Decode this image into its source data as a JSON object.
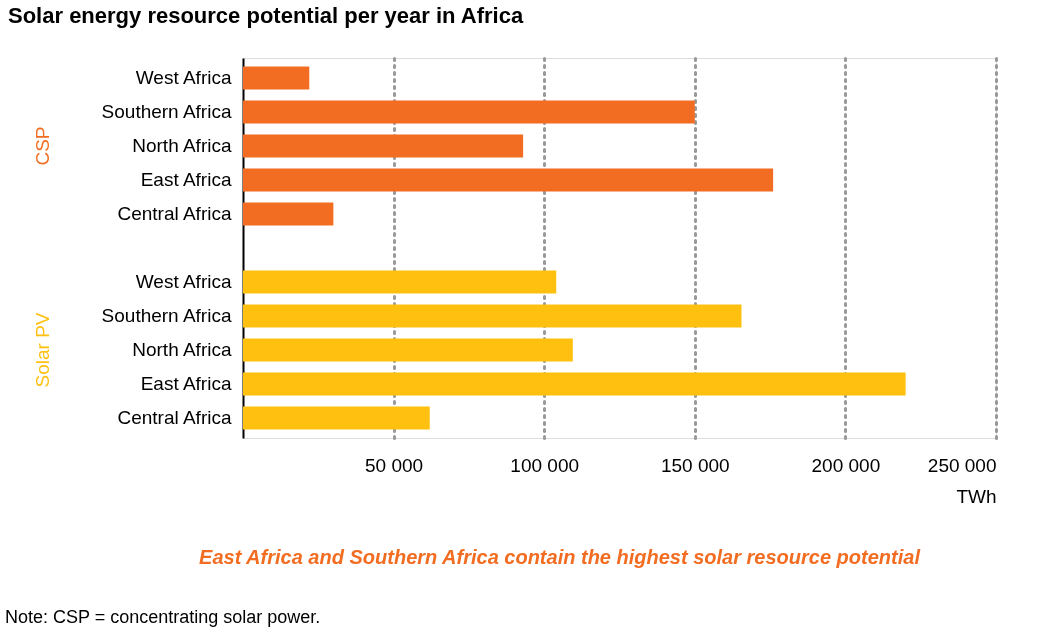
{
  "chart_data": {
    "type": "bar",
    "orientation": "horizontal",
    "title": "Solar energy resource potential per year in Africa",
    "categories": [
      "West Africa",
      "Southern Africa",
      "North Africa",
      "East Africa",
      "Central Africa",
      "West Africa",
      "Southern Africa",
      "North Africa",
      "East Africa",
      "Central Africa"
    ],
    "series": [
      {
        "name": "CSP",
        "color": "#f26d21",
        "values": [
          22000,
          150000,
          93000,
          176000,
          30000,
          null,
          null,
          null,
          null,
          null
        ]
      },
      {
        "name": "Solar PV",
        "color": "#ffc00f",
        "values": [
          null,
          null,
          null,
          null,
          null,
          104000,
          165500,
          109500,
          220000,
          62000
        ]
      }
    ],
    "xlabel": "TWh",
    "xlim": [
      0,
      250000
    ],
    "xticks": [
      {
        "value": 50000,
        "label": "50 000"
      },
      {
        "value": 100000,
        "label": "100 000"
      },
      {
        "value": 150000,
        "label": "150 000"
      },
      {
        "value": 200000,
        "label": "200 000"
      },
      {
        "value": 250000,
        "label": "250 000"
      }
    ],
    "grid": "x",
    "legend": false,
    "annotations": [
      "East Africa and Southern Africa contain the highest solar resource potential",
      "Note: CSP = concentrating solar power."
    ]
  }
}
